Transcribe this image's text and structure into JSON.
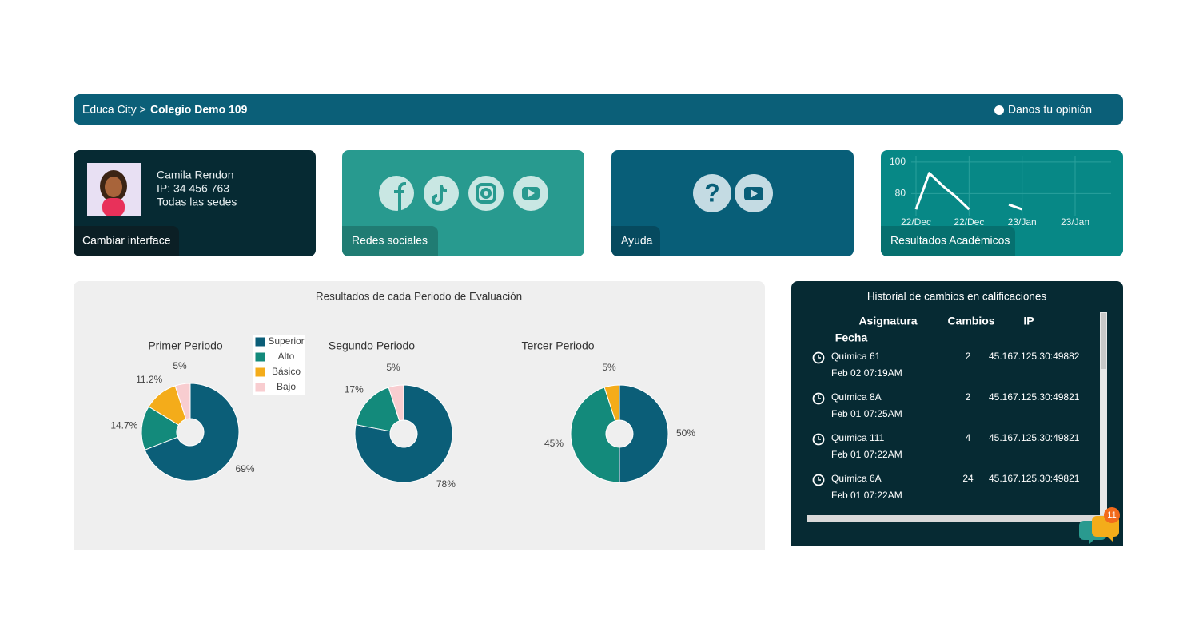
{
  "header": {
    "breadcrumb": "Educa City >",
    "school": "Colegio Demo 109",
    "feedback": "Danos tu opinión"
  },
  "cards": {
    "user": {
      "name": "Camila Rendon",
      "ip": "IP: 34 456 763",
      "sedes": "Todas las sedes",
      "label": "Cambiar interface"
    },
    "social": {
      "label": "Redes sociales"
    },
    "help": {
      "label": "Ayuda"
    },
    "academic": {
      "label": "Resultados Académicos",
      "chart": {
        "type": "line",
        "categories": [
          "22/Dec",
          null,
          null,
          null,
          "22/Dec",
          null,
          null,
          null,
          "23/Jan",
          null,
          null,
          null,
          "23/Jan"
        ],
        "values": [
          70,
          93,
          85,
          78,
          70,
          null,
          null,
          73,
          70,
          null,
          null,
          null,
          null
        ],
        "color": "#ffffff",
        "ylim": [
          66,
          104
        ],
        "yticks": [
          80,
          100
        ],
        "grid": true
      }
    }
  },
  "results": {
    "title": "Resultados de cada Periodo de Evaluación",
    "legend": {
      "categories": [
        "Superior",
        "Alto",
        "Básico",
        "Bajo"
      ],
      "colors": [
        "#0b5e78",
        "#138a7b",
        "#f4ac1a",
        "#f8cdd0"
      ]
    },
    "pies": [
      {
        "type": "pie",
        "title": "Primer Periodo",
        "values": [
          69,
          14.7,
          11.2,
          5
        ],
        "value_labels": [
          "69%",
          "14.7%",
          "11.2%",
          "5%"
        ]
      },
      {
        "type": "pie",
        "title": "Segundo Periodo",
        "values": [
          78,
          17,
          0,
          5
        ],
        "value_labels": [
          "78%",
          "17%",
          null,
          "5%"
        ]
      },
      {
        "type": "pie",
        "title": "Tercer Periodo",
        "values": [
          50,
          45,
          5,
          0
        ],
        "value_labels": [
          "50%",
          "45%",
          "5%",
          null
        ]
      }
    ]
  },
  "history": {
    "title": "Historial de cambios en calificaciones",
    "columns": [
      "Asignatura",
      "Cambios",
      "IP",
      "Fecha"
    ],
    "rows": [
      [
        "Química 61",
        "2",
        "45.167.125.30:49882",
        "Feb 02 07:19AM"
      ],
      [
        "Química 8A",
        "2",
        "45.167.125.30:49821",
        "Feb 01 07:25AM"
      ],
      [
        "Química 111",
        "4",
        "45.167.125.30:49821",
        "Feb 01 07:22AM"
      ],
      [
        "Química 6A",
        "24",
        "45.167.125.30:49821",
        "Feb 01 07:22AM"
      ]
    ],
    "badge": "11"
  }
}
